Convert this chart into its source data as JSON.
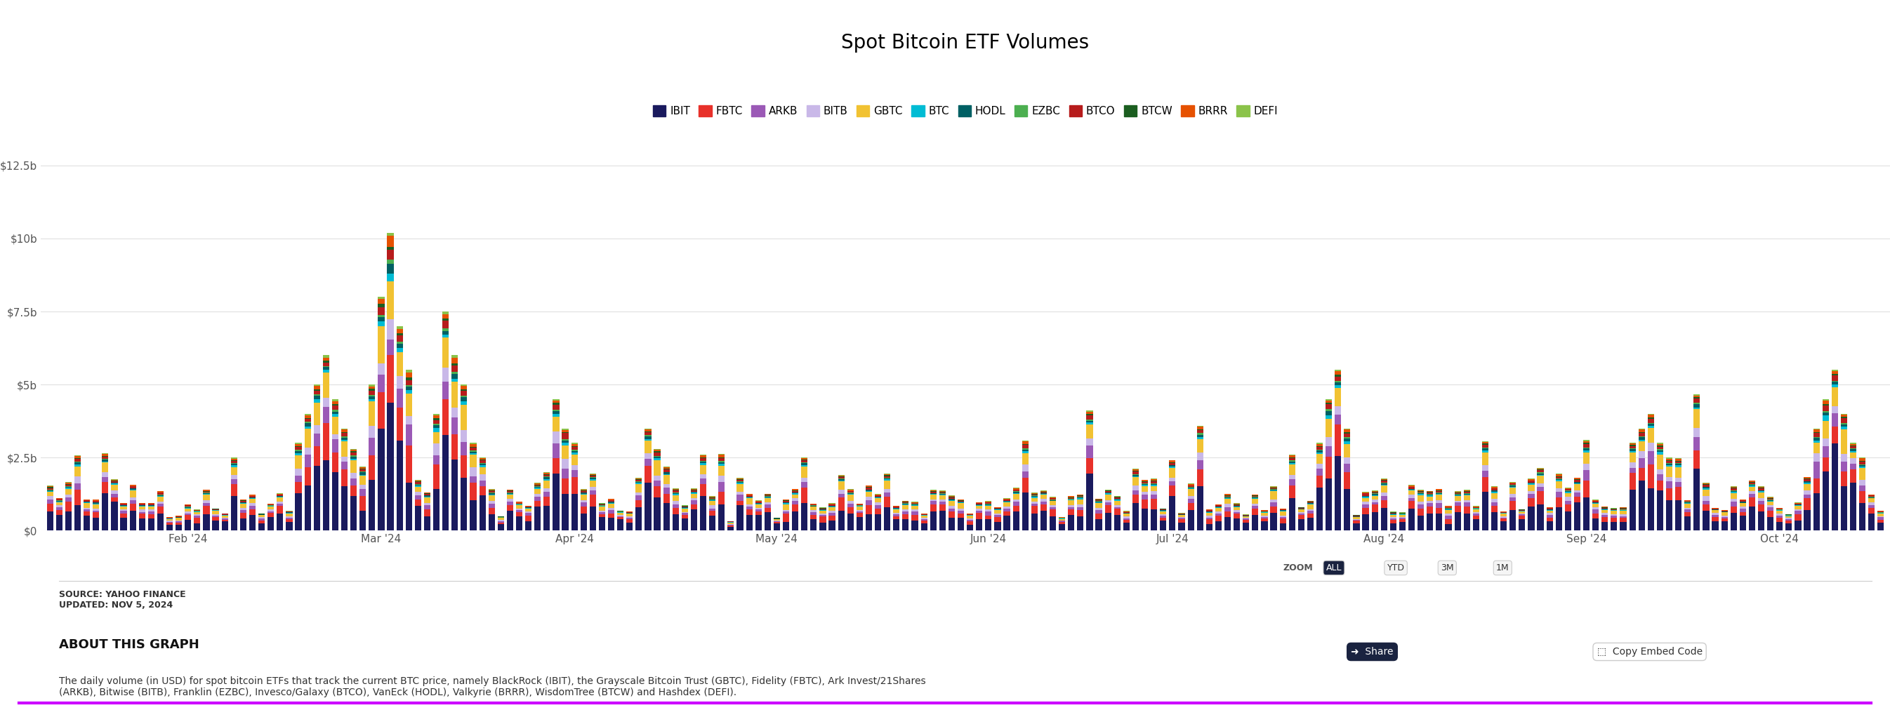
{
  "title": "Spot Bitcoin ETF Volumes",
  "etfs": [
    "IBIT",
    "FBTC",
    "ARKB",
    "BITB",
    "GBTC",
    "BTC",
    "HODL",
    "EZBC",
    "BTCO",
    "BTCW",
    "BRRR",
    "DEFI"
  ],
  "colors": [
    "#1a1a5e",
    "#e8312a",
    "#9b59b6",
    "#c9b8e8",
    "#f1c232",
    "#00bcd4",
    "#006064",
    "#4caf50",
    "#b71c1c",
    "#1b5e20",
    "#e65100",
    "#8bc34a"
  ],
  "yticks": [
    0,
    2500000000.0,
    5000000000.0,
    7500000000.0,
    10000000000.0,
    12500000000.0
  ],
  "ylabels": [
    "$0",
    "$2.5b",
    "$5b",
    "$7.5b",
    "$10b",
    "$12.5b"
  ],
  "ylim": [
    0,
    13500000000.0
  ],
  "source_text": "SOURCE: YAHOO FINANCE\nUPDATED: NOV 5, 2024",
  "about_title": "ABOUT THIS GRAPH",
  "about_text": "The daily volume (in USD) for spot bitcoin ETFs that track the current BTC price, namely BlackRock (IBIT), the Grayscale Bitcoin Trust (GBTC), Fidelity (FBTC), Ark Invest/21Shares\n(ARKB), Bitwise (BITB), Franklin (EZBC), Invesco/Galaxy (BTCO), VanEck (HODL), Valkyrie (BRRR), WisdomTree (BTCW) and Hashdex (DEFI).",
  "bg_color": "#ffffff",
  "grid_color": "#e0e0e0",
  "bar_width": 0.7,
  "accent_line_color": "#cc00ff"
}
